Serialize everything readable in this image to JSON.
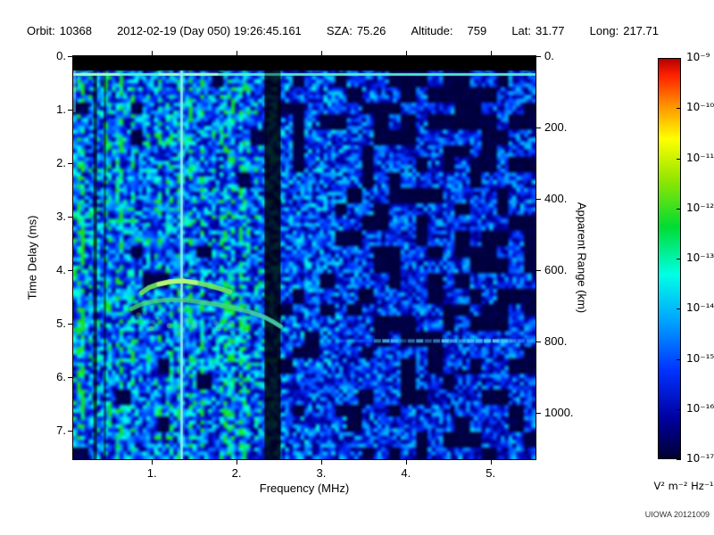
{
  "header": {
    "orbit_label": "Orbit:",
    "orbit_value": "10368",
    "datetime": "2012-02-19 (Day 050) 19:26:45.161",
    "sza_label": "SZA:",
    "sza_value": "75.26",
    "altitude_label": "Altitude:",
    "altitude_value": "759",
    "lat_label": "Lat:",
    "lat_value": "31.77",
    "long_label": "Long:",
    "long_value": "217.71"
  },
  "watermark": "UIOWA 20121009",
  "chart_data": {
    "type": "heatmap",
    "xlabel": "Frequency (MHz)",
    "ylabel_left": "Time Delay (ms)",
    "ylabel_right": "Apparent Range (km)",
    "x_range_mhz": [
      0.07,
      5.53
    ],
    "y_range_ms": [
      0,
      7.53
    ],
    "x_ticks": [
      "1.",
      "2.",
      "3.",
      "4.",
      "5."
    ],
    "x_tick_values": [
      1,
      2,
      3,
      4,
      5
    ],
    "y_left_ticks": [
      "0.",
      "1.",
      "2.",
      "3.",
      "4.",
      "5.",
      "6.",
      "7."
    ],
    "y_left_tick_values": [
      0,
      1,
      2,
      3,
      4,
      5,
      6,
      7
    ],
    "y_right_ticks": [
      "0.",
      "200.",
      "400.",
      "600.",
      "800.",
      "1000."
    ],
    "y_right_tick_km": [
      0,
      200,
      400,
      600,
      800,
      1000
    ],
    "colorbar": {
      "scale": "log",
      "ticks": [
        "10⁻⁹",
        "10⁻¹⁰",
        "10⁻¹¹",
        "10⁻¹²",
        "10⁻¹³",
        "10⁻¹⁴",
        "10⁻¹⁵",
        "10⁻¹⁶",
        "10⁻¹⁷"
      ],
      "unit_label": "V² m⁻² Hz⁻¹",
      "stops": [
        [
          0.0,
          "#000032"
        ],
        [
          0.1,
          "#0000a0"
        ],
        [
          0.22,
          "#0032ff"
        ],
        [
          0.34,
          "#00a0ff"
        ],
        [
          0.46,
          "#00ffe6"
        ],
        [
          0.58,
          "#00dc32"
        ],
        [
          0.7,
          "#96e600"
        ],
        [
          0.8,
          "#ffff00"
        ],
        [
          0.88,
          "#ff9600"
        ],
        [
          0.96,
          "#ff1e00"
        ],
        [
          1.0,
          "#b40000"
        ]
      ]
    },
    "features": {
      "top_black_band_ms": [
        0,
        0.27
      ],
      "surface_echo_ms": 0.34,
      "bright_vertical_mhz": 1.35,
      "dark_band_mhz": [
        2.33,
        2.52
      ],
      "dark_lanes_mhz": [
        0.33,
        0.45
      ],
      "ionosphere_trace_upper": [
        [
          0.88,
          4.42
        ],
        [
          0.97,
          4.32
        ],
        [
          1.08,
          4.26
        ],
        [
          1.22,
          4.21
        ],
        [
          1.38,
          4.2
        ],
        [
          1.52,
          4.23
        ],
        [
          1.66,
          4.28
        ],
        [
          1.8,
          4.34
        ],
        [
          1.92,
          4.4
        ]
      ],
      "ionosphere_trace_lower": [
        [
          0.76,
          4.72
        ],
        [
          0.9,
          4.62
        ],
        [
          1.05,
          4.57
        ],
        [
          1.25,
          4.55
        ],
        [
          1.45,
          4.57
        ],
        [
          1.65,
          4.61
        ],
        [
          1.85,
          4.66
        ],
        [
          2.02,
          4.72
        ],
        [
          2.18,
          4.79
        ],
        [
          2.32,
          4.87
        ],
        [
          2.44,
          4.97
        ],
        [
          2.52,
          5.05
        ]
      ],
      "ground_echo": {
        "ms": 5.32,
        "mhz_range": [
          3.62,
          5.5
        ]
      },
      "noise_seed": 987654
    }
  }
}
